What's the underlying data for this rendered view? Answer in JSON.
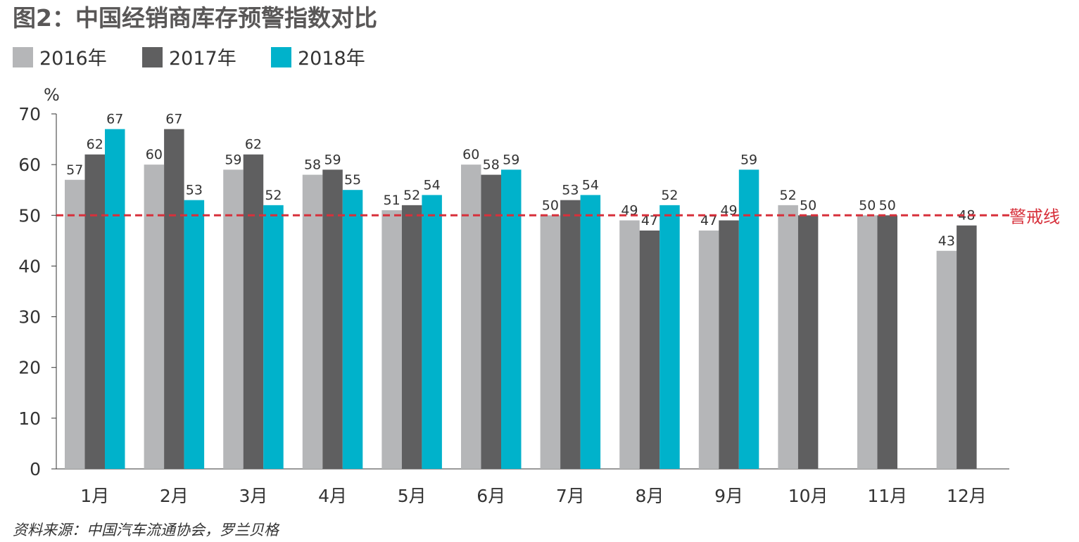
{
  "title": "图2：中国经销商库存预警指数对比",
  "source": "资料来源：中国汽车流通协会，罗兰贝格",
  "colors": {
    "title": "#595757",
    "series_2016": "#b5b6b8",
    "series_2017": "#5f5f60",
    "series_2018": "#00b2cb",
    "warning_line": "#d7303b",
    "axis": "#333333"
  },
  "chart_data": {
    "type": "bar",
    "title": "图2：中国经销商库存预警指数对比",
    "unit": "%",
    "categories": [
      "1月",
      "2月",
      "3月",
      "4月",
      "5月",
      "6月",
      "7月",
      "8月",
      "9月",
      "10月",
      "11月",
      "12月"
    ],
    "series": [
      {
        "name": "2016年",
        "values": [
          57,
          60,
          59,
          58,
          51,
          60,
          50,
          49,
          47,
          52,
          50,
          43
        ]
      },
      {
        "name": "2017年",
        "values": [
          62,
          67,
          62,
          59,
          52,
          58,
          53,
          47,
          49,
          50,
          50,
          48
        ]
      },
      {
        "name": "2018年",
        "values": [
          67,
          53,
          52,
          55,
          54,
          59,
          54,
          52,
          59,
          null,
          null,
          null
        ]
      }
    ],
    "ylim": [
      0,
      70
    ],
    "yticks": [
      0,
      10,
      20,
      30,
      40,
      50,
      60,
      70
    ],
    "grid": false,
    "legend_position": "top-left",
    "reference_line": {
      "value": 50,
      "label": "警戒线",
      "style": "dashed"
    }
  }
}
